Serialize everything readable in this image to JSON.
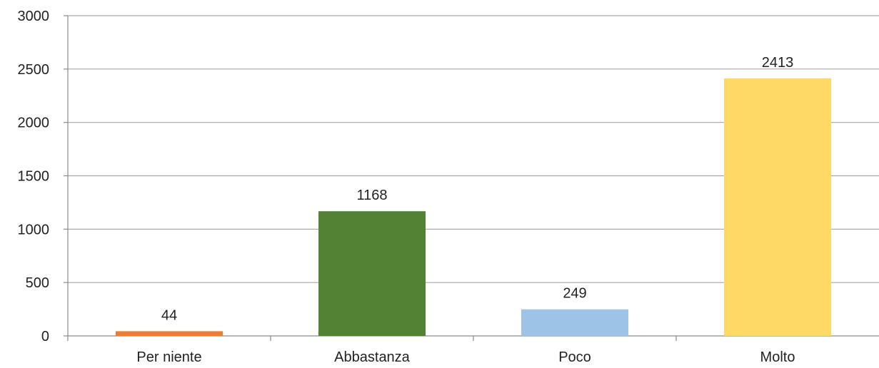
{
  "chart_data": {
    "type": "bar",
    "categories": [
      "Per niente",
      "Abbastanza",
      "Poco",
      "Molto"
    ],
    "values": [
      44,
      1168,
      249,
      2413
    ],
    "data_labels": [
      "44",
      "1168",
      "249",
      "2413"
    ],
    "colors": [
      "#ed7d31",
      "#548235",
      "#9dc3e6",
      "#ffd966"
    ],
    "ylim": [
      0,
      3000
    ],
    "yticks": [
      0,
      500,
      1000,
      1500,
      2000,
      2500,
      3000
    ],
    "ytick_labels": [
      "0",
      "500",
      "1000",
      "1500",
      "2000",
      "2500",
      "3000"
    ],
    "grid": true,
    "legend": "none",
    "title": "",
    "xlabel": "",
    "ylabel": ""
  }
}
